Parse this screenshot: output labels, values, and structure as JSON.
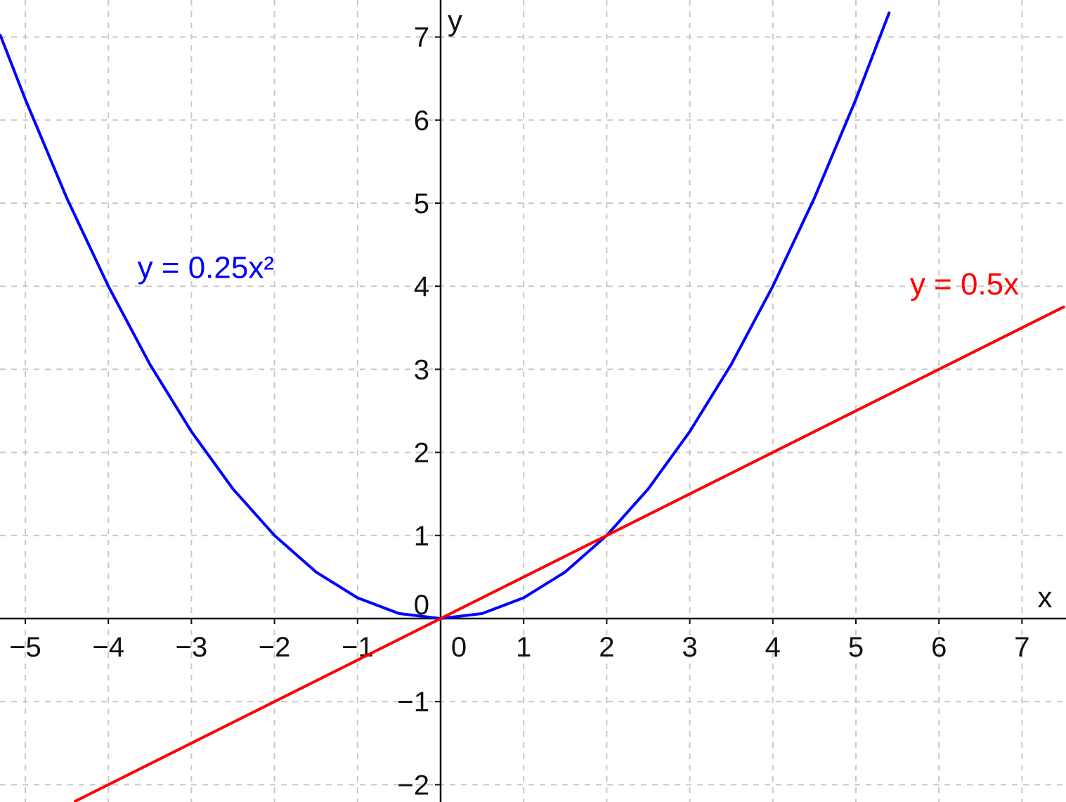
{
  "chart_data": {
    "type": "line",
    "title": "",
    "xlabel": "x",
    "ylabel": "y",
    "xlim": [
      -5.3,
      7.5
    ],
    "ylim": [
      -2.2,
      7.5
    ],
    "grid": true,
    "x_ticks": [
      -5,
      -4,
      -3,
      -2,
      -1,
      0,
      1,
      2,
      3,
      4,
      5,
      6,
      7
    ],
    "y_ticks": [
      -2,
      -1,
      0,
      1,
      2,
      3,
      4,
      5,
      6,
      7
    ],
    "x_tick_labels": [
      "−5",
      "−4",
      "−3",
      "−2",
      "−1",
      "0",
      "1",
      "2",
      "3",
      "4",
      "5",
      "6",
      "7"
    ],
    "y_tick_labels": [
      "−2",
      "−1",
      "0",
      "1",
      "2",
      "3",
      "4",
      "5",
      "6",
      "7"
    ],
    "series": [
      {
        "name": "y = 0.25x²",
        "color": "#0000ff",
        "x": [
          -5.3,
          -5,
          -4.5,
          -4,
          -3.5,
          -3,
          -2.5,
          -2,
          -1.5,
          -1,
          -0.5,
          0,
          0.5,
          1,
          1.5,
          2,
          2.5,
          3,
          3.5,
          4,
          4.5,
          5,
          5.4
        ],
        "y": [
          7.02,
          6.25,
          5.06,
          4,
          3.06,
          2.25,
          1.56,
          1,
          0.56,
          0.25,
          0.06,
          0,
          0.06,
          0.25,
          0.56,
          1,
          1.56,
          2.25,
          3.06,
          4,
          5.06,
          6.25,
          7.29
        ]
      },
      {
        "name": "y = 0.5x",
        "color": "#ff0000",
        "x": [
          -4.4,
          7.5
        ],
        "y": [
          -2.2,
          3.75
        ]
      }
    ]
  }
}
